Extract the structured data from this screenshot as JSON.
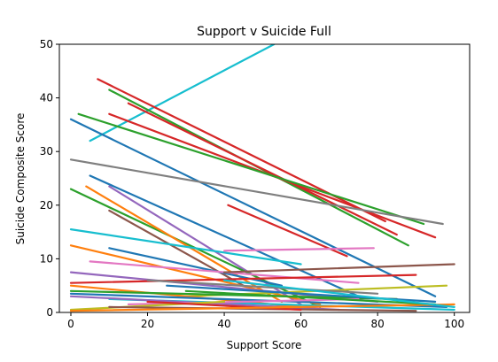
{
  "chart_data": {
    "type": "line",
    "title": "Support v Suicide Full",
    "xlabel": "Support Score",
    "ylabel": "Suicide Composite Score",
    "xlim": [
      -3,
      104
    ],
    "ylim": [
      0,
      50
    ],
    "xticks": [
      0,
      20,
      40,
      60,
      80,
      100
    ],
    "yticks": [
      0,
      10,
      20,
      30,
      40,
      50
    ],
    "grid": false,
    "series": [
      {
        "color": "#17becf",
        "x": [
          5,
          53
        ],
        "y": [
          32,
          50
        ]
      },
      {
        "color": "#d62728",
        "x": [
          7,
          82
        ],
        "y": [
          43.5,
          17
        ]
      },
      {
        "color": "#2ca02c",
        "x": [
          10,
          88
        ],
        "y": [
          41.5,
          12.5
        ]
      },
      {
        "color": "#d62728",
        "x": [
          15,
          85
        ],
        "y": [
          39,
          14.5
        ]
      },
      {
        "color": "#d62728",
        "x": [
          10,
          95
        ],
        "y": [
          37,
          14
        ]
      },
      {
        "color": "#2ca02c",
        "x": [
          2,
          92
        ],
        "y": [
          37,
          16.5
        ]
      },
      {
        "color": "#1f77b4",
        "x": [
          0,
          95
        ],
        "y": [
          36,
          3
        ]
      },
      {
        "color": "#7f7f7f",
        "x": [
          0,
          97
        ],
        "y": [
          28.5,
          16.5
        ]
      },
      {
        "color": "#1f77b4",
        "x": [
          5,
          75
        ],
        "y": [
          25.5,
          3
        ]
      },
      {
        "color": "#9467bd",
        "x": [
          10,
          60
        ],
        "y": [
          23.5,
          1.5
        ]
      },
      {
        "color": "#2ca02c",
        "x": [
          0,
          65
        ],
        "y": [
          23,
          1
        ]
      },
      {
        "color": "#d62728",
        "x": [
          41,
          72
        ],
        "y": [
          20,
          10.5
        ]
      },
      {
        "color": "#ff7f0e",
        "x": [
          4,
          55
        ],
        "y": [
          23.5,
          2
        ]
      },
      {
        "color": "#8c564b",
        "x": [
          10,
          45
        ],
        "y": [
          19,
          5
        ]
      },
      {
        "color": "#17becf",
        "x": [
          0,
          60
        ],
        "y": [
          15.5,
          9
        ]
      },
      {
        "color": "#e377c2",
        "x": [
          40,
          79
        ],
        "y": [
          11.5,
          12
        ]
      },
      {
        "color": "#ff7f0e",
        "x": [
          0,
          65
        ],
        "y": [
          12.5,
          1.5
        ]
      },
      {
        "color": "#1f77b4",
        "x": [
          10,
          55
        ],
        "y": [
          12,
          5
        ]
      },
      {
        "color": "#e377c2",
        "x": [
          5,
          75
        ],
        "y": [
          9.5,
          5.5
        ]
      },
      {
        "color": "#8c564b",
        "x": [
          40,
          100
        ],
        "y": [
          7.5,
          9
        ]
      },
      {
        "color": "#9467bd",
        "x": [
          0,
          80
        ],
        "y": [
          7.5,
          2
        ]
      },
      {
        "color": "#bcbd22",
        "x": [
          30,
          98
        ],
        "y": [
          3,
          5
        ]
      },
      {
        "color": "#d62728",
        "x": [
          0,
          90
        ],
        "y": [
          5.5,
          7
        ]
      },
      {
        "color": "#ff7f0e",
        "x": [
          0,
          60
        ],
        "y": [
          5,
          1
        ]
      },
      {
        "color": "#2ca02c",
        "x": [
          0,
          85
        ],
        "y": [
          4,
          2.5
        ]
      },
      {
        "color": "#7f7f7f",
        "x": [
          20,
          80
        ],
        "y": [
          6,
          3.5
        ]
      },
      {
        "color": "#1f77b4",
        "x": [
          0,
          98
        ],
        "y": [
          3.5,
          1
        ]
      },
      {
        "color": "#17becf",
        "x": [
          10,
          100
        ],
        "y": [
          2.5,
          0.5
        ]
      },
      {
        "color": "#9467bd",
        "x": [
          0,
          70
        ],
        "y": [
          3,
          0.5
        ]
      },
      {
        "color": "#e377c2",
        "x": [
          15,
          75
        ],
        "y": [
          1.5,
          2.5
        ]
      },
      {
        "color": "#bcbd22",
        "x": [
          0,
          40
        ],
        "y": [
          0.5,
          2
        ]
      },
      {
        "color": "#8c564b",
        "x": [
          10,
          90
        ],
        "y": [
          1,
          0.3
        ]
      },
      {
        "color": "#d62728",
        "x": [
          20,
          60
        ],
        "y": [
          2,
          0.5
        ]
      },
      {
        "color": "#ff7f0e",
        "x": [
          0,
          100
        ],
        "y": [
          0.3,
          1.5
        ]
      },
      {
        "color": "#2ca02c",
        "x": [
          30,
          95
        ],
        "y": [
          4,
          1.5
        ]
      },
      {
        "color": "#1f77b4",
        "x": [
          25,
          95
        ],
        "y": [
          5,
          2
        ]
      },
      {
        "color": "#17becf",
        "x": [
          40,
          100
        ],
        "y": [
          6,
          1
        ]
      }
    ]
  }
}
